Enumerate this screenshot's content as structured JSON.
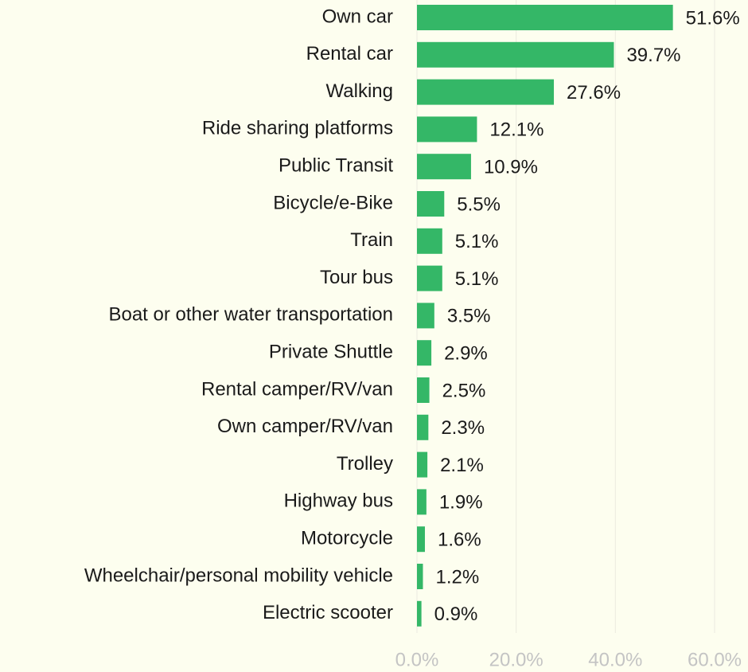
{
  "chart_data": {
    "type": "barh",
    "categories": [
      "Own car",
      "Rental car",
      "Walking",
      "Ride sharing platforms",
      "Public Transit",
      "Bicycle/e-Bike",
      "Train",
      "Tour bus",
      "Boat or other water transportation",
      "Private Shuttle",
      "Rental camper/RV/van",
      "Own camper/RV/van",
      "Trolley",
      "Highway bus",
      "Motorcycle",
      "Wheelchair/personal mobility vehicle",
      "Electric scooter"
    ],
    "values": [
      51.6,
      39.7,
      27.6,
      12.1,
      10.9,
      5.5,
      5.1,
      5.1,
      3.5,
      2.9,
      2.5,
      2.3,
      2.1,
      1.9,
      1.6,
      1.2,
      0.9
    ],
    "value_labels": [
      "51.6%",
      "39.7%",
      "27.6%",
      "12.1%",
      "10.9%",
      "5.5%",
      "5.1%",
      "5.1%",
      "3.5%",
      "2.9%",
      "2.5%",
      "2.3%",
      "2.1%",
      "1.9%",
      "1.6%",
      "1.2%",
      "0.9%"
    ],
    "color": "#34b767",
    "xlim": [
      0,
      60
    ],
    "xticks": [
      {
        "value": 0,
        "label": "0.0%"
      },
      {
        "value": 20,
        "label": "20.0%"
      },
      {
        "value": 40,
        "label": "40.0%"
      },
      {
        "value": 60,
        "label": "60.0%"
      }
    ],
    "grid": true
  }
}
